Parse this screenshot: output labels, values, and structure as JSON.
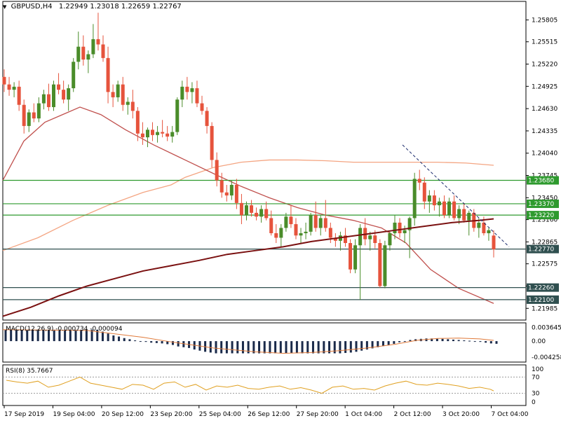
{
  "header": {
    "arrow_glyph": "▼",
    "symbol_text": "GBPUSD,H4",
    "ohlc_text": "1.22949 1.23018 1.22659 1.22767"
  },
  "chart_data": {
    "type": "candlestick",
    "symbol": "GBPUSD",
    "timeframe": "H4",
    "last_bar": {
      "open": 1.22949,
      "high": 1.23018,
      "low": 1.22659,
      "close": 1.22767
    },
    "y_range": [
      1.2183,
      1.2605
    ],
    "y_ticks": [
      "1.25805",
      "1.25515",
      "1.25220",
      "1.24925",
      "1.24630",
      "1.24335",
      "1.24040",
      "1.23745",
      "1.23450",
      "1.23160",
      "1.22865",
      "1.22575",
      "1.22280",
      "1.21985"
    ],
    "x_ticks": [
      "17 Sep 2019",
      "19 Sep 04:00",
      "20 Sep 12:00",
      "23 Sep 20:00",
      "25 Sep 04:00",
      "26 Sep 12:00",
      "27 Sep 20:00",
      "1 Oct 04:00",
      "2 Oct 12:00",
      "3 Oct 20:00",
      "7 Oct 04:00"
    ],
    "colors": {
      "up": "#4a8c2a",
      "down": "#e6533c",
      "level": "#2e9a2e",
      "ma_fast": "#c0504d",
      "ma_mid": "#f4a582",
      "ma_slow": "#7a1010",
      "trend": "#1a2a6c"
    },
    "levels": [
      {
        "value": 1.2368,
        "label": "1.23680",
        "color": "#2e9a2e"
      },
      {
        "value": 1.2337,
        "label": "1.23370",
        "color": "#2e9a2e"
      },
      {
        "value": 1.2322,
        "label": "1.23220",
        "color": "#2e9a2e"
      },
      {
        "value": 1.2277,
        "label": "1.22770",
        "color": "#2f4f4f"
      },
      {
        "value": 1.2226,
        "label": "1.22260",
        "color": "#2f4f4f"
      },
      {
        "value": 1.221,
        "label": "1.22100",
        "color": "#2f4f4f"
      }
    ],
    "candles": [
      [
        1.2505,
        1.2515,
        1.2485,
        1.2495
      ],
      [
        1.2495,
        1.2505,
        1.248,
        1.2488
      ],
      [
        1.2488,
        1.2498,
        1.2478,
        1.2492
      ],
      [
        1.2492,
        1.25,
        1.246,
        1.2468
      ],
      [
        1.2468,
        1.2475,
        1.243,
        1.244
      ],
      [
        1.244,
        1.2462,
        1.2432,
        1.2458
      ],
      [
        1.2458,
        1.247,
        1.2445,
        1.245
      ],
      [
        1.245,
        1.2478,
        1.2445,
        1.247
      ],
      [
        1.247,
        1.2488,
        1.2462,
        1.2482
      ],
      [
        1.2482,
        1.2496,
        1.246,
        1.2465
      ],
      [
        1.2465,
        1.25,
        1.246,
        1.2495
      ],
      [
        1.2495,
        1.251,
        1.2482,
        1.2488
      ],
      [
        1.2488,
        1.25,
        1.247,
        1.2475
      ],
      [
        1.2475,
        1.2495,
        1.246,
        1.249
      ],
      [
        1.249,
        1.253,
        1.2485,
        1.2525
      ],
      [
        1.2525,
        1.2565,
        1.2515,
        1.2545
      ],
      [
        1.2545,
        1.256,
        1.252,
        1.2528
      ],
      [
        1.2528,
        1.254,
        1.251,
        1.2535
      ],
      [
        1.2535,
        1.2575,
        1.253,
        1.2555
      ],
      [
        1.2555,
        1.259,
        1.254,
        1.2548
      ],
      [
        1.2548,
        1.256,
        1.2525,
        1.253
      ],
      [
        1.253,
        1.2545,
        1.247,
        1.2485
      ],
      [
        1.2485,
        1.2495,
        1.2465,
        1.2478
      ],
      [
        1.2478,
        1.25,
        1.2472,
        1.2495
      ],
      [
        1.2495,
        1.2505,
        1.246,
        1.2468
      ],
      [
        1.2468,
        1.2478,
        1.2455,
        1.2472
      ],
      [
        1.2472,
        1.2488,
        1.245,
        1.246
      ],
      [
        1.246,
        1.2465,
        1.242,
        1.243
      ],
      [
        1.243,
        1.2445,
        1.2415,
        1.2425
      ],
      [
        1.2425,
        1.2438,
        1.2412,
        1.2435
      ],
      [
        1.2435,
        1.2445,
        1.242,
        1.2428
      ],
      [
        1.2428,
        1.244,
        1.2418,
        1.2432
      ],
      [
        1.2432,
        1.2448,
        1.2425,
        1.243
      ],
      [
        1.243,
        1.244,
        1.242,
        1.2426
      ],
      [
        1.2426,
        1.244,
        1.2418,
        1.2432
      ],
      [
        1.2432,
        1.2478,
        1.2428,
        1.2475
      ],
      [
        1.2475,
        1.25,
        1.2465,
        1.2492
      ],
      [
        1.2492,
        1.2505,
        1.2475,
        1.2485
      ],
      [
        1.2485,
        1.2498,
        1.247,
        1.249
      ],
      [
        1.249,
        1.25,
        1.2465,
        1.247
      ],
      [
        1.247,
        1.248,
        1.2455,
        1.246
      ],
      [
        1.246,
        1.2465,
        1.243,
        1.244
      ],
      [
        1.244,
        1.2445,
        1.2385,
        1.2395
      ],
      [
        1.2395,
        1.2405,
        1.236,
        1.2368
      ],
      [
        1.2368,
        1.2378,
        1.2345,
        1.2352
      ],
      [
        1.2352,
        1.2362,
        1.234,
        1.2348
      ],
      [
        1.2348,
        1.2368,
        1.2342,
        1.2362
      ],
      [
        1.2362,
        1.237,
        1.233,
        1.2338
      ],
      [
        1.2338,
        1.235,
        1.231,
        1.2322
      ],
      [
        1.2322,
        1.234,
        1.2315,
        1.2335
      ],
      [
        1.2335,
        1.2342,
        1.232,
        1.2325
      ],
      [
        1.2325,
        1.2332,
        1.2315,
        1.232
      ],
      [
        1.232,
        1.2335,
        1.2312,
        1.233
      ],
      [
        1.233,
        1.234,
        1.2315,
        1.2318
      ],
      [
        1.2318,
        1.2328,
        1.2295,
        1.2298
      ],
      [
        1.2298,
        1.231,
        1.2285,
        1.2292
      ],
      [
        1.2292,
        1.231,
        1.228,
        1.2305
      ],
      [
        1.2305,
        1.2325,
        1.23,
        1.232
      ],
      [
        1.232,
        1.2335,
        1.2305,
        1.231
      ],
      [
        1.231,
        1.2318,
        1.229,
        1.2295
      ],
      [
        1.2295,
        1.2305,
        1.2285,
        1.2298
      ],
      [
        1.2298,
        1.2312,
        1.229,
        1.23
      ],
      [
        1.23,
        1.2325,
        1.2295,
        1.2322
      ],
      [
        1.2322,
        1.234,
        1.23,
        1.2305
      ],
      [
        1.2305,
        1.2322,
        1.2295,
        1.2318
      ],
      [
        1.2318,
        1.2342,
        1.23,
        1.2305
      ],
      [
        1.2305,
        1.2312,
        1.2285,
        1.2292
      ],
      [
        1.2292,
        1.2298,
        1.228,
        1.2288
      ],
      [
        1.2288,
        1.23,
        1.2275,
        1.2295
      ],
      [
        1.2295,
        1.2305,
        1.228,
        1.2285
      ],
      [
        1.2285,
        1.229,
        1.2245,
        1.225
      ],
      [
        1.225,
        1.229,
        1.2245,
        1.2282
      ],
      [
        1.2282,
        1.231,
        1.221,
        1.2305
      ],
      [
        1.2305,
        1.2318,
        1.2282,
        1.229
      ],
      [
        1.229,
        1.23,
        1.2275,
        1.2295
      ],
      [
        1.2295,
        1.2302,
        1.2278,
        1.2285
      ],
      [
        1.2285,
        1.229,
        1.2226,
        1.2228
      ],
      [
        1.2228,
        1.2288,
        1.2225,
        1.2282
      ],
      [
        1.2282,
        1.23,
        1.2275,
        1.2298
      ],
      [
        1.2298,
        1.2322,
        1.229,
        1.2312
      ],
      [
        1.2312,
        1.2318,
        1.2292,
        1.2298
      ],
      [
        1.2298,
        1.2308,
        1.2285,
        1.2302
      ],
      [
        1.2302,
        1.232,
        1.2265,
        1.2318
      ],
      [
        1.2318,
        1.2378,
        1.2308,
        1.237
      ],
      [
        1.237,
        1.2382,
        1.2355,
        1.2365
      ],
      [
        1.2365,
        1.2372,
        1.233,
        1.234
      ],
      [
        1.234,
        1.2355,
        1.2325,
        1.2348
      ],
      [
        1.2348,
        1.2355,
        1.2328,
        1.2335
      ],
      [
        1.2335,
        1.2345,
        1.232,
        1.234
      ],
      [
        1.234,
        1.2348,
        1.2318,
        1.2322
      ],
      [
        1.2322,
        1.2345,
        1.2318,
        1.234
      ],
      [
        1.234,
        1.2348,
        1.2315,
        1.2318
      ],
      [
        1.2318,
        1.2335,
        1.231,
        1.233
      ],
      [
        1.233,
        1.2338,
        1.2312,
        1.2315
      ],
      [
        1.2315,
        1.2328,
        1.2295,
        1.2325
      ],
      [
        1.2325,
        1.233,
        1.23,
        1.2305
      ],
      [
        1.2305,
        1.2318,
        1.2292,
        1.2312
      ],
      [
        1.2312,
        1.232,
        1.2295,
        1.2298
      ],
      [
        1.2298,
        1.2305,
        1.2288,
        1.2302
      ],
      [
        1.22949,
        1.23018,
        1.22659,
        1.22767
      ]
    ],
    "ma_fast": [
      [
        0,
        1.2368
      ],
      [
        30,
        1.242
      ],
      [
        60,
        1.2445
      ],
      [
        85,
        1.2455
      ],
      [
        110,
        1.2465
      ],
      [
        140,
        1.2455
      ],
      [
        175,
        1.2435
      ],
      [
        215,
        1.2415
      ],
      [
        260,
        1.2395
      ],
      [
        305,
        1.2375
      ],
      [
        340,
        1.236
      ],
      [
        380,
        1.2345
      ],
      [
        420,
        1.2332
      ],
      [
        460,
        1.2322
      ],
      [
        500,
        1.2315
      ],
      [
        540,
        1.2305
      ],
      [
        575,
        1.2285
      ],
      [
        610,
        1.225
      ],
      [
        650,
        1.2225
      ],
      [
        700,
        1.2205
      ]
    ],
    "ma_mid": [
      [
        0,
        1.2275
      ],
      [
        50,
        1.2292
      ],
      [
        100,
        1.2315
      ],
      [
        150,
        1.2335
      ],
      [
        200,
        1.2352
      ],
      [
        240,
        1.2362
      ],
      [
        260,
        1.2372
      ],
      [
        300,
        1.2385
      ],
      [
        340,
        1.2392
      ],
      [
        380,
        1.2395
      ],
      [
        420,
        1.2395
      ],
      [
        460,
        1.2394
      ],
      [
        500,
        1.2392
      ],
      [
        540,
        1.2392
      ],
      [
        580,
        1.2392
      ],
      [
        620,
        1.2392
      ],
      [
        660,
        1.2391
      ],
      [
        700,
        1.2388
      ]
    ],
    "ma_slow": [
      [
        0,
        1.2188
      ],
      [
        40,
        1.22
      ],
      [
        80,
        1.2215
      ],
      [
        120,
        1.2228
      ],
      [
        160,
        1.2238
      ],
      [
        200,
        1.2248
      ],
      [
        240,
        1.2255
      ],
      [
        280,
        1.2262
      ],
      [
        320,
        1.227
      ],
      [
        360,
        1.2275
      ],
      [
        400,
        1.228
      ],
      [
        440,
        1.2287
      ],
      [
        480,
        1.2292
      ],
      [
        520,
        1.2297
      ],
      [
        560,
        1.2302
      ],
      [
        600,
        1.2307
      ],
      [
        640,
        1.2312
      ],
      [
        680,
        1.2315
      ],
      [
        700,
        1.2317
      ]
    ],
    "trendline": [
      [
        570,
        1.2415
      ],
      [
        722,
        1.228
      ]
    ],
    "macd": {
      "label": "MACD(12,26,9) -0.000734 -0.000094",
      "y_ticks": [
        "0.003645",
        "0.00",
        "-0.004258"
      ],
      "y_range": [
        -0.0055,
        0.0048
      ],
      "hist": [
        0.003,
        0.003,
        0.003,
        0.003,
        0.003,
        0.003,
        0.003,
        0.003,
        0.003,
        0.003,
        0.003,
        0.003,
        0.003,
        0.003,
        0.003,
        0.003,
        0.003,
        0.003,
        0.0025,
        0.002,
        0.0015,
        0.0012,
        0.0008,
        0.0005,
        0.0002,
        0.0,
        -0.0002,
        -0.0004,
        -0.0005,
        -0.0006,
        -0.0008,
        -0.001,
        -0.0014,
        -0.0016,
        -0.0018,
        -0.0022,
        -0.0025,
        -0.0028,
        -0.003,
        -0.0032,
        -0.0032,
        -0.0032,
        -0.0032,
        -0.0032,
        -0.0032,
        -0.0032,
        -0.0032,
        -0.0032,
        -0.0032,
        -0.0032,
        -0.0032,
        -0.0032,
        -0.0032,
        -0.0032,
        -0.0032,
        -0.0032,
        -0.0032,
        -0.0032,
        -0.0032,
        -0.0032,
        -0.0032,
        -0.0032,
        -0.0032,
        -0.0031,
        -0.003,
        -0.0028,
        -0.0025,
        -0.0022,
        -0.0019,
        -0.0016,
        -0.0013,
        -0.001,
        -0.0007,
        -0.0003,
        0.0,
        0.0003,
        0.0005,
        0.0006,
        0.0007,
        0.0007,
        0.0006,
        0.0006,
        0.0005,
        0.0004,
        0.0003,
        0.0002,
        0.0001,
        0.0,
        -0.0002,
        -0.0004,
        -0.0006,
        -0.0007
      ],
      "signal": [
        [
          0,
          0.003
        ],
        [
          120,
          0.0028
        ],
        [
          200,
          0.001
        ],
        [
          240,
          -0.0002
        ],
        [
          300,
          -0.0018
        ],
        [
          360,
          -0.0028
        ],
        [
          400,
          -0.0032
        ],
        [
          440,
          -0.003
        ],
        [
          480,
          -0.0025
        ],
        [
          520,
          -0.0018
        ],
        [
          560,
          -0.0008
        ],
        [
          590,
          0.0002
        ],
        [
          620,
          0.0007
        ],
        [
          650,
          0.0008
        ],
        [
          680,
          0.0006
        ],
        [
          700,
          0.0002
        ]
      ]
    },
    "rsi": {
      "label": "RSI(8) 35.7667",
      "y_ticks": [
        "100",
        "70",
        "30",
        "0"
      ],
      "y_range": [
        0,
        100
      ],
      "levels": [
        70,
        30
      ],
      "values": [
        [
          5,
          62
        ],
        [
          20,
          58
        ],
        [
          35,
          55
        ],
        [
          50,
          60
        ],
        [
          65,
          45
        ],
        [
          80,
          50
        ],
        [
          95,
          60
        ],
        [
          110,
          70
        ],
        [
          125,
          55
        ],
        [
          140,
          50
        ],
        [
          155,
          45
        ],
        [
          170,
          40
        ],
        [
          185,
          52
        ],
        [
          200,
          50
        ],
        [
          215,
          40
        ],
        [
          230,
          55
        ],
        [
          245,
          58
        ],
        [
          260,
          45
        ],
        [
          275,
          52
        ],
        [
          290,
          38
        ],
        [
          305,
          48
        ],
        [
          320,
          45
        ],
        [
          335,
          50
        ],
        [
          350,
          42
        ],
        [
          365,
          40
        ],
        [
          380,
          45
        ],
        [
          395,
          48
        ],
        [
          410,
          40
        ],
        [
          425,
          44
        ],
        [
          440,
          38
        ],
        [
          455,
          30
        ],
        [
          470,
          45
        ],
        [
          485,
          48
        ],
        [
          500,
          40
        ],
        [
          515,
          42
        ],
        [
          530,
          38
        ],
        [
          545,
          48
        ],
        [
          560,
          55
        ],
        [
          575,
          60
        ],
        [
          590,
          52
        ],
        [
          605,
          50
        ],
        [
          620,
          55
        ],
        [
          635,
          52
        ],
        [
          650,
          48
        ],
        [
          665,
          42
        ],
        [
          680,
          45
        ],
        [
          695,
          40
        ],
        [
          700,
          36
        ]
      ]
    }
  }
}
